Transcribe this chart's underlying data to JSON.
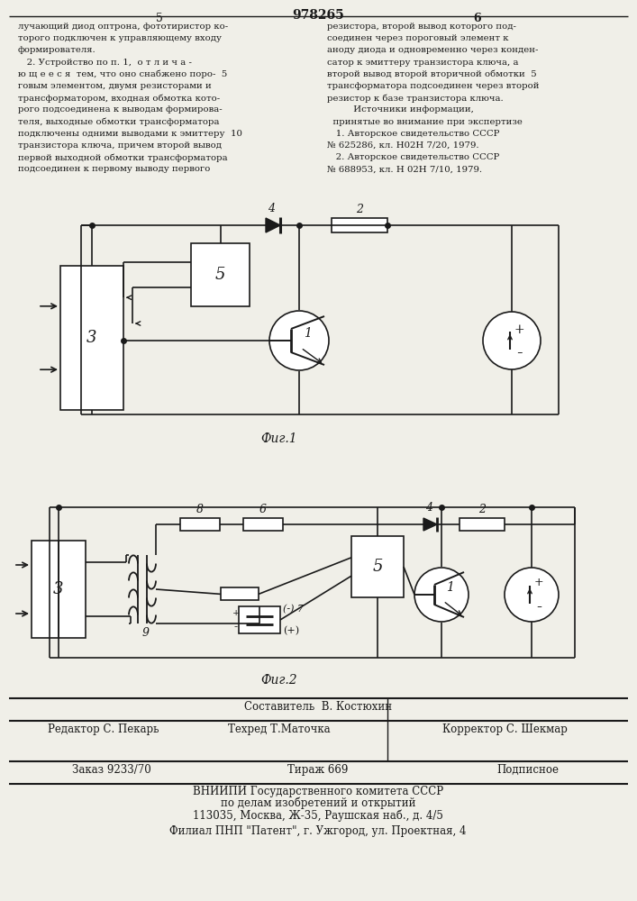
{
  "page_number_left": "5",
  "page_number_center": "978265",
  "page_number_right": "6",
  "col_left_text": [
    "лучающий диод оптрона, фототиристор ко-",
    "торого подключен к управляющему входу",
    "формирователя.",
    "   2. Устройство по п. 1,  о т л и ч а -",
    "ю щ е е с я  тем, что оно снабжено поро-  5",
    "говым элементом, двумя резисторами и",
    "трансформатором, входная обмотка кото-",
    "рого подсоединена к выводам формирова-",
    "теля, выходные обмотки трансформатора",
    "подключены одними выводами к эмиттеру  10",
    "транзистора ключа, причем второй вывод",
    "первой выходной обмотки трансформатора",
    "подсоединен к первому выводу первого"
  ],
  "col_right_text": [
    "резистора, второй вывод которого под-",
    "соединен через пороговый элемент к",
    "аноду диода и одновременно через конден-",
    "сатор к эмиттеру транзистора ключа, а",
    "второй вывод второй вторичной обмотки  5",
    "трансформатора подсоединен через второй",
    "резистор к базе транзистора ключа.",
    "         Источники информации,",
    "  принятые во внимание при экспертизе",
    "   1. Авторское свидетельство СССР",
    "№ 625286, кл. Н02Н 7/20, 1979.",
    "   2. Авторское свидетельство СССР",
    "№ 688953, кл. Н 02Н 7/10, 1979."
  ],
  "fig1_caption": "Фиг.1",
  "fig2_caption": "Фиг.2",
  "footer_sestavitel": "Составитель  В. Костюхин",
  "footer_editor": "Редактор С. Пекарь",
  "footer_tehred": "Техред Т.Маточка",
  "footer_korrektor": "Корректор С. Шекмар",
  "footer_zakaz": "Заказ 9233/70",
  "footer_tirazh": "Тираж 669",
  "footer_podpisnoe": "Подписное",
  "footer_vniip1": "ВНИИПИ Государственного комитета СССР",
  "footer_vniip2": "по делам изобретений и открытий",
  "footer_vniip3": "113035, Москва, Ж-35, Раушская наб., д. 4/5",
  "footer_filial": "Филиал ПНП \"Патент\", г. Ужгород, ул. Проектная, 4",
  "bg_color": "#f0efe8",
  "text_color": "#1a1a1a",
  "line_color": "#1a1a1a"
}
